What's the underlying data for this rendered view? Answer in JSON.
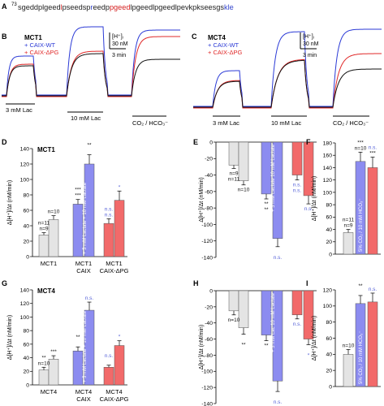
{
  "panelA": {
    "letter": "A",
    "superscript": "73",
    "segments": [
      {
        "t": "sgeddplgeed",
        "c": "#222222"
      },
      {
        "t": "l",
        "c": "#d42020"
      },
      {
        "t": "pseedsp",
        "c": "#222222"
      },
      {
        "t": "r",
        "c": "#3344cc"
      },
      {
        "t": "eedp",
        "c": "#222222"
      },
      {
        "t": "pgeed",
        "c": "#d42020"
      },
      {
        "t": "lpgeedlpgeed",
        "c": "#222222"
      },
      {
        "t": "lpevkpks",
        "c": "#222222"
      },
      {
        "t": "eesgs",
        "c": "#222222"
      },
      {
        "t": "kle",
        "c": "#3344cc"
      }
    ]
  },
  "panelB": {
    "letter": "B",
    "cell": "MCT1",
    "legend": [
      "+ CAIX-WT",
      "+ CAIX-ΔPG"
    ],
    "scale_conc": "[H⁺]ᵢ",
    "scale_conc2": "30 nM",
    "scale_time": "3 min",
    "labels": [
      "3 mM Lac",
      "10 mM Lac",
      "CO₂ / HCO₃⁻"
    ]
  },
  "panelC": {
    "letter": "C",
    "cell": "MCT4",
    "legend": [
      "+ CAIX-WT",
      "+ CAIX-ΔPG"
    ],
    "scale_conc": "[H⁺]ᵢ",
    "scale_conc2": "30 nM",
    "scale_time": "3 min",
    "labels": [
      "3 mM Lac",
      "10 mM Lac",
      "CO₂ / HCO₃⁻"
    ]
  },
  "colors": {
    "gray": "#e4e4e4",
    "blue": "#8c8cf0",
    "red": "#f26a6a",
    "black": "#111111",
    "blueTrace": "#2b3ad6",
    "redTrace": "#e02828",
    "ns": "#5561d8"
  },
  "chart_data": [
    {
      "panel": "D",
      "type": "bar",
      "title": "MCT1",
      "ylabel": "Δ[H⁺]/Δt (nM/min)",
      "ylim": [
        0,
        140
      ],
      "yticks": [
        0,
        20,
        40,
        60,
        80,
        100,
        120,
        140
      ],
      "groups": [
        "MCT1",
        "MCT1\nCAIX",
        "MCT1\nCAIX-ΔPG"
      ],
      "values": [
        28,
        48,
        68,
        120,
        43,
        73
      ],
      "errors": [
        3,
        5,
        6,
        12,
        6,
        12
      ],
      "colors": [
        "gray",
        "gray",
        "blue",
        "blue",
        "red",
        "red"
      ],
      "annotations": [
        "n=9",
        "n=11",
        "n=10",
        "***",
        "***",
        "**",
        "n.s.",
        "n.s.",
        "*"
      ],
      "inbar": "+ 3 mM Lactate  + 10 mM Lactate"
    },
    {
      "panel": "E",
      "type": "bar",
      "ylabel": "Δ[H⁺]/Δt (nM/min)",
      "ylim": [
        -140,
        0
      ],
      "yticks": [
        0,
        -20,
        -40,
        -60,
        -80,
        -100,
        -120,
        -140
      ],
      "values": [
        -28,
        -47,
        -63,
        -117,
        -40,
        -65
      ],
      "errors": [
        4,
        5,
        6,
        10,
        6,
        10
      ],
      "colors": [
        "gray",
        "gray",
        "blue",
        "blue",
        "red",
        "red"
      ],
      "annotations": [
        "n=9",
        "n=11",
        "n=10",
        "**",
        "**",
        "n.s.",
        "n.s.",
        "n.s.",
        "n.s."
      ],
      "inbar": "+ 3 mM Lactate  10 mM Lactate"
    },
    {
      "panel": "F",
      "type": "bar",
      "ylabel": "Δ[H⁺]/Δt (nM/min)",
      "ylim": [
        0,
        180
      ],
      "yticks": [
        0,
        20,
        40,
        60,
        80,
        100,
        120,
        140,
        160,
        180
      ],
      "values": [
        35,
        150,
        140
      ],
      "errors": [
        5,
        15,
        17
      ],
      "colors": [
        "gray",
        "blue",
        "red"
      ],
      "annotations": [
        "n=9",
        "n=11",
        "n=10",
        "***",
        "***",
        "n.s."
      ],
      "inbar": "5% CO₂ / 10 mM HCO₃⁻"
    },
    {
      "panel": "G",
      "type": "bar",
      "title": "MCT4",
      "ylabel": "Δ[H⁺]/Δt (nM/min)",
      "ylim": [
        0,
        140
      ],
      "yticks": [
        0,
        20,
        40,
        60,
        80,
        100,
        120,
        140
      ],
      "groups": [
        "MCT4",
        "MCT4\nCAIX",
        "MCT4\nCAIX-ΔPG"
      ],
      "values": [
        22,
        38,
        50,
        110,
        26,
        58
      ],
      "errors": [
        4,
        5,
        6,
        12,
        3,
        7
      ],
      "colors": [
        "gray",
        "gray",
        "blue",
        "blue",
        "red",
        "red"
      ],
      "annotations": [
        "n=10",
        "**",
        "***",
        "**",
        "n.s.",
        "n.s.",
        "*"
      ],
      "inbar": "+ 3 mM Lactate  + 10 mM Lactate"
    },
    {
      "panel": "H",
      "type": "bar",
      "ylabel": "Δ[H⁺]/Δt (nM/min)",
      "ylim": [
        -140,
        0
      ],
      "yticks": [
        0,
        -20,
        -40,
        -60,
        -80,
        -100,
        -120,
        -140
      ],
      "values": [
        -25,
        -46,
        -55,
        -112,
        -30,
        -60
      ],
      "errors": [
        5,
        8,
        7,
        13,
        5,
        7
      ],
      "colors": [
        "gray",
        "gray",
        "blue",
        "blue",
        "red",
        "red"
      ],
      "annotations": [
        "n=10",
        "**",
        "**",
        "n.s.",
        "n.s.",
        "*"
      ],
      "inbar": "+ 3 mM Lac  10 mM Lactate"
    },
    {
      "panel": "I",
      "type": "bar",
      "ylabel": "Δ[H⁺]/Δt (nM/min)",
      "ylim": [
        0,
        120
      ],
      "yticks": [
        0,
        20,
        40,
        60,
        80,
        100,
        120
      ],
      "values": [
        40,
        103,
        105
      ],
      "errors": [
        6,
        10,
        11
      ],
      "colors": [
        "gray",
        "blue",
        "red"
      ],
      "annotations": [
        "n=10",
        "**",
        "n.s."
      ],
      "inbar": "5% CO₂ / 10 mM HCO₃⁻"
    }
  ]
}
